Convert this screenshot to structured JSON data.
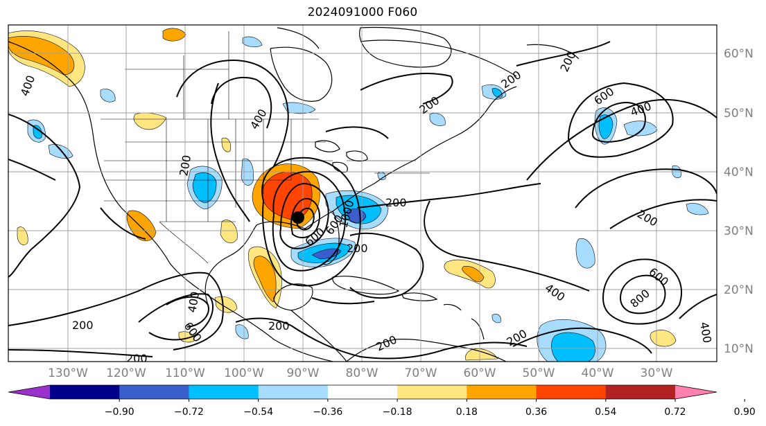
{
  "title": "2024091000 F060",
  "map": {
    "lat_labels": [
      "60°N",
      "50°N",
      "40°N",
      "30°N",
      "20°N",
      "10°N"
    ],
    "lon_labels": [
      "130°W",
      "120°W",
      "110°W",
      "100°W",
      "90°W",
      "80°W",
      "70°W",
      "60°W",
      "50°W",
      "40°W",
      "30°W"
    ],
    "contour_labels": [
      "200",
      "400",
      "600",
      "800",
      "1000"
    ],
    "storm_center": {
      "lon": -90.5,
      "lat": 32.5
    },
    "coastline_color": "#000000",
    "gridline_color": "#9e9e9e"
  },
  "colorbar": {
    "ticks": [
      "−0.90",
      "−0.72",
      "−0.54",
      "−0.36",
      "−0.18",
      "0.18",
      "0.36",
      "0.54",
      "0.72",
      "0.90"
    ],
    "colors": [
      "#9932cc",
      "#00008b",
      "#3a5fcd",
      "#00bfff",
      "#a7dcff",
      "#ffffff",
      "#ffe680",
      "#ffa500",
      "#ff4500",
      "#b22222",
      "#ff7fae"
    ],
    "extend": "both"
  }
}
